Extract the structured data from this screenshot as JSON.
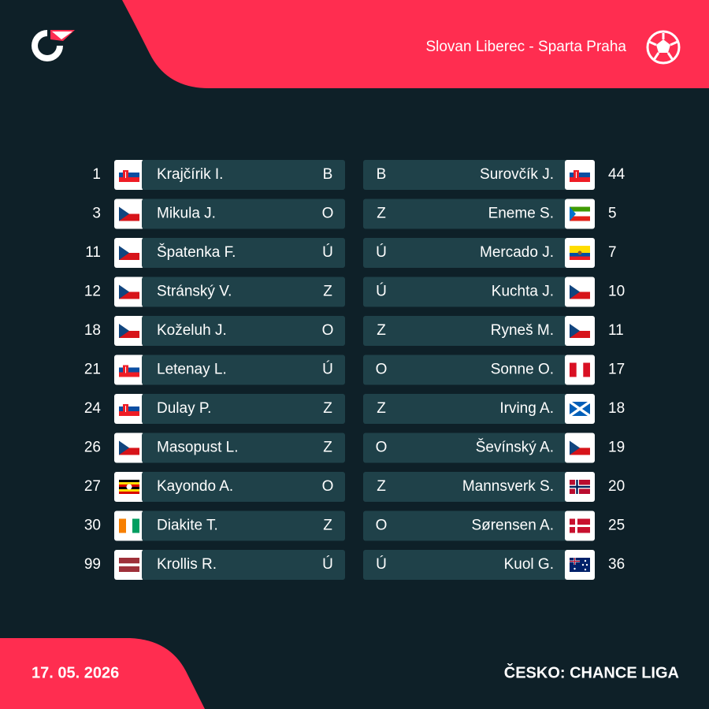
{
  "header": {
    "title": "Slovan Liberec - Sparta Praha"
  },
  "home": {
    "players": [
      {
        "number": 1,
        "name": "Krajčírik I.",
        "position": "B"
      },
      {
        "number": 3,
        "name": "Mikula J.",
        "position": "O"
      },
      {
        "number": 11,
        "name": "Špatenka F.",
        "position": "Ú"
      },
      {
        "number": 12,
        "name": "Stránský V.",
        "position": "Z"
      },
      {
        "number": 18,
        "name": "Koželuh J.",
        "position": "O"
      },
      {
        "number": 21,
        "name": "Letenay L.",
        "position": "Ú"
      },
      {
        "number": 24,
        "name": "Dulay P.",
        "position": "Z"
      },
      {
        "number": 26,
        "name": "Masopust L.",
        "position": "Z"
      },
      {
        "number": 27,
        "name": "Kayondo A.",
        "position": "O"
      },
      {
        "number": 30,
        "name": "Diakite T.",
        "position": "Z"
      },
      {
        "number": 99,
        "name": "Krollis R.",
        "position": "Ú"
      }
    ]
  },
  "away": {
    "players": [
      {
        "number": 44,
        "name": "Surovčík J.",
        "position": "B"
      },
      {
        "number": 5,
        "name": "Eneme S.",
        "position": "Z"
      },
      {
        "number": 7,
        "name": "Mercado J.",
        "position": "Ú"
      },
      {
        "number": 10,
        "name": "Kuchta J.",
        "position": "Ú"
      },
      {
        "number": 11,
        "name": "Ryneš M.",
        "position": "Z"
      },
      {
        "number": 17,
        "name": "Sonne O.",
        "position": "O"
      },
      {
        "number": 18,
        "name": "Irving A.",
        "position": "Z"
      },
      {
        "number": 19,
        "name": "Ševínský A.",
        "position": "O"
      },
      {
        "number": 20,
        "name": "Mannsverk S.",
        "position": "Z"
      },
      {
        "number": 25,
        "name": "Sørensen A.",
        "position": "O"
      },
      {
        "number": 36,
        "name": "Kuol G.",
        "position": "Ú"
      }
    ]
  },
  "footer": {
    "date": "17. 05. 2026",
    "league": "ČESKO: CHANCE LIGA"
  }
}
